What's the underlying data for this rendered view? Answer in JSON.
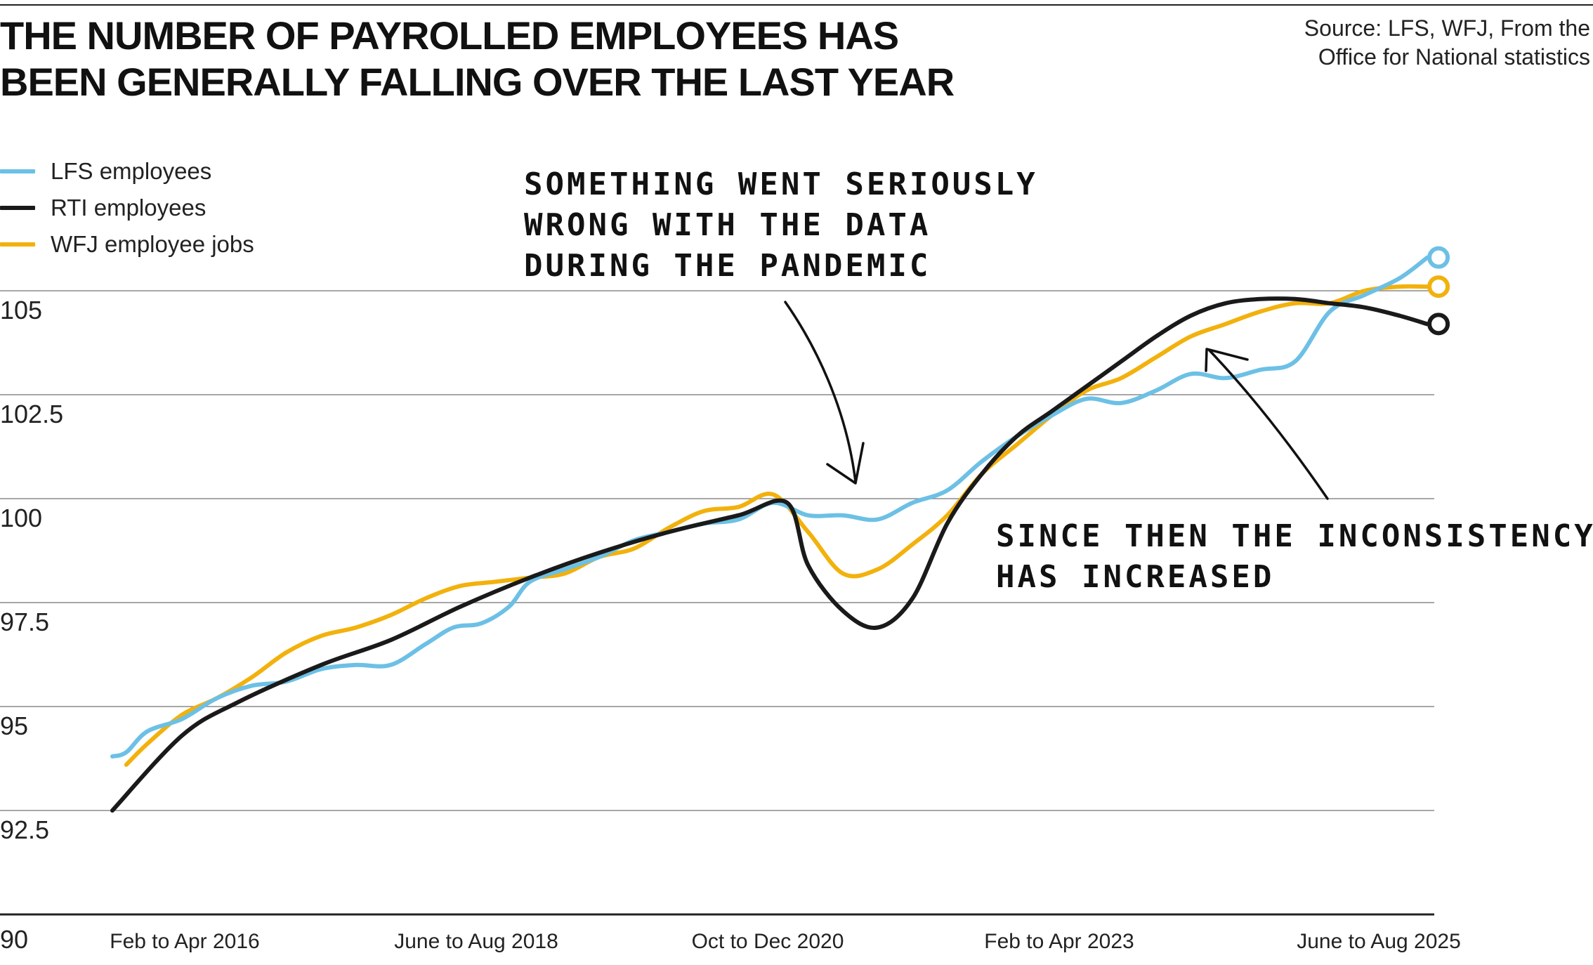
{
  "title_lines": [
    "THE NUMBER OF PAYROLLED EMPLOYEES HAS",
    "BEEN GENERALLY  FALLING OVER THE LAST YEAR"
  ],
  "source_lines": [
    "Source: LFS, WFJ, From the",
    "Office for National statistics"
  ],
  "colors": {
    "lfs": "#6cc0e5",
    "rti": "#1a1a1a",
    "wfj": "#f2b10c",
    "grid": "#8a8a8a",
    "axis": "#222222"
  },
  "annotations": [
    {
      "name": "pandemic-note",
      "lines": [
        "SOMETHING WENT SERIOUSLY",
        "WRONG WITH THE DATA",
        "DURING THE PANDEMIC"
      ]
    },
    {
      "name": "inconsistency-note",
      "lines": [
        "SINCE THEN THE INCONSISTENCY",
        "HAS INCREASED"
      ]
    }
  ],
  "chart_data": {
    "type": "line",
    "title": "THE NUMBER OF PAYROLLED EMPLOYEES HAS BEEN GENERALLY  FALLING OVER THE LAST YEAR",
    "xlabel": "",
    "ylabel": "",
    "x_tick_labels": [
      "Feb to Apr 2016",
      "June to Aug 2018",
      "Oct to Dec 2020",
      "Feb to Apr 2023",
      "June to Aug 2025"
    ],
    "x_range": [
      0,
      9.5
    ],
    "y_ticks": [
      90,
      92.5,
      95,
      97.5,
      100,
      102.5,
      105
    ],
    "ylim": [
      90,
      107.5
    ],
    "grid": true,
    "legend_position": "top-left",
    "series": [
      {
        "name": "LFS employees",
        "points": [
          [
            0,
            93.8
          ],
          [
            0.1,
            93.9
          ],
          [
            0.25,
            94.4
          ],
          [
            0.5,
            94.7
          ],
          [
            0.75,
            95.2
          ],
          [
            1.0,
            95.5
          ],
          [
            1.25,
            95.6
          ],
          [
            1.5,
            95.9
          ],
          [
            1.75,
            96.0
          ],
          [
            2.0,
            96.0
          ],
          [
            2.25,
            96.5
          ],
          [
            2.45,
            96.9
          ],
          [
            2.65,
            97.0
          ],
          [
            2.85,
            97.4
          ],
          [
            3.0,
            98.0
          ],
          [
            3.25,
            98.3
          ],
          [
            3.5,
            98.6
          ],
          [
            3.75,
            99.0
          ],
          [
            4.0,
            99.2
          ],
          [
            4.25,
            99.4
          ],
          [
            4.5,
            99.5
          ],
          [
            4.75,
            99.9
          ],
          [
            5.0,
            99.6
          ],
          [
            5.25,
            99.6
          ],
          [
            5.5,
            99.5
          ],
          [
            5.75,
            99.9
          ],
          [
            6.0,
            100.2
          ],
          [
            6.25,
            100.9
          ],
          [
            6.5,
            101.5
          ],
          [
            6.75,
            102.0
          ],
          [
            7.0,
            102.4
          ],
          [
            7.25,
            102.3
          ],
          [
            7.5,
            102.6
          ],
          [
            7.75,
            103.0
          ],
          [
            8.0,
            102.9
          ],
          [
            8.25,
            103.1
          ],
          [
            8.5,
            103.3
          ],
          [
            8.75,
            104.5
          ],
          [
            9.0,
            104.9
          ],
          [
            9.25,
            105.3
          ],
          [
            9.45,
            105.8
          ]
        ]
      },
      {
        "name": "RTI employees",
        "points": [
          [
            0,
            92.5
          ],
          [
            0.5,
            94.3
          ],
          [
            0.9,
            95.1
          ],
          [
            1.5,
            96.0
          ],
          [
            2.0,
            96.6
          ],
          [
            2.5,
            97.4
          ],
          [
            3.0,
            98.1
          ],
          [
            3.5,
            98.7
          ],
          [
            4.0,
            99.2
          ],
          [
            4.5,
            99.6
          ],
          [
            4.85,
            99.9
          ],
          [
            5.0,
            98.4
          ],
          [
            5.25,
            97.3
          ],
          [
            5.5,
            96.9
          ],
          [
            5.75,
            97.6
          ],
          [
            6.0,
            99.4
          ],
          [
            6.25,
            100.6
          ],
          [
            6.5,
            101.5
          ],
          [
            6.75,
            102.1
          ],
          [
            7.0,
            102.7
          ],
          [
            7.25,
            103.3
          ],
          [
            7.5,
            103.9
          ],
          [
            7.75,
            104.4
          ],
          [
            8.0,
            104.7
          ],
          [
            8.25,
            104.8
          ],
          [
            8.5,
            104.8
          ],
          [
            8.75,
            104.7
          ],
          [
            9.0,
            104.6
          ],
          [
            9.25,
            104.4
          ],
          [
            9.45,
            104.2
          ]
        ]
      },
      {
        "name": "WFJ employee jobs",
        "points": [
          [
            0.1,
            93.6
          ],
          [
            0.25,
            94.1
          ],
          [
            0.5,
            94.8
          ],
          [
            0.75,
            95.2
          ],
          [
            1.0,
            95.7
          ],
          [
            1.25,
            96.3
          ],
          [
            1.5,
            96.7
          ],
          [
            1.75,
            96.9
          ],
          [
            2.0,
            97.2
          ],
          [
            2.25,
            97.6
          ],
          [
            2.5,
            97.9
          ],
          [
            2.75,
            98.0
          ],
          [
            3.0,
            98.1
          ],
          [
            3.25,
            98.2
          ],
          [
            3.5,
            98.6
          ],
          [
            3.75,
            98.8
          ],
          [
            4.0,
            99.3
          ],
          [
            4.25,
            99.7
          ],
          [
            4.5,
            99.8
          ],
          [
            4.75,
            100.1
          ],
          [
            5.0,
            99.2
          ],
          [
            5.25,
            98.2
          ],
          [
            5.5,
            98.3
          ],
          [
            5.75,
            98.9
          ],
          [
            6.0,
            99.6
          ],
          [
            6.25,
            100.6
          ],
          [
            6.5,
            101.3
          ],
          [
            6.75,
            102.0
          ],
          [
            7.0,
            102.6
          ],
          [
            7.25,
            102.9
          ],
          [
            7.5,
            103.4
          ],
          [
            7.75,
            103.9
          ],
          [
            8.0,
            104.2
          ],
          [
            8.25,
            104.5
          ],
          [
            8.5,
            104.7
          ],
          [
            8.75,
            104.7
          ],
          [
            9.0,
            105.0
          ],
          [
            9.25,
            105.1
          ],
          [
            9.45,
            105.1
          ]
        ]
      }
    ]
  }
}
